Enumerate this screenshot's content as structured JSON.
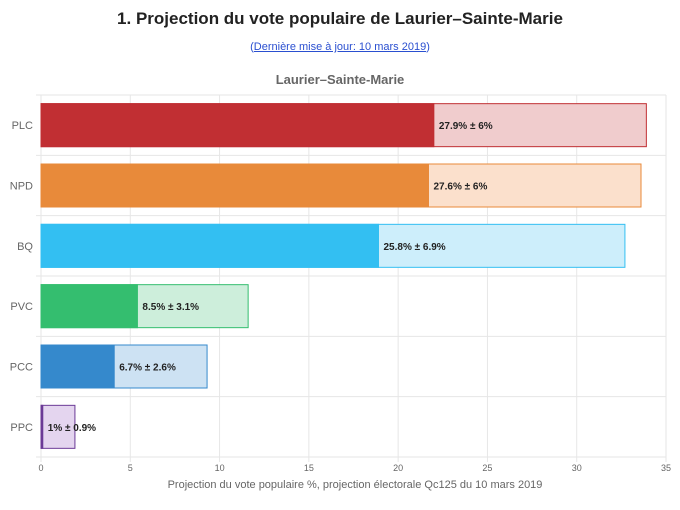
{
  "page": {
    "title": "1. Projection du vote populaire de Laurier–Sainte-Marie",
    "update_open": "(",
    "update_link": "Dernière mise à jour: 10 mars 2019",
    "update_close": ")"
  },
  "chart_data": {
    "type": "bar",
    "orientation": "horizontal",
    "title": "Laurier–Sainte-Marie",
    "xlabel": "Projection du vote populaire %, projection électorale Qc125 du 10 mars 2019",
    "ylabel": "",
    "xlim": [
      0,
      35
    ],
    "xticks": [
      0,
      5,
      10,
      15,
      20,
      25,
      30,
      35
    ],
    "grid": true,
    "categories": [
      "PLC",
      "NPD",
      "BQ",
      "PVC",
      "PCC",
      "PPC"
    ],
    "bars": [
      {
        "party": "PLC",
        "low": 22.0,
        "high": 33.9,
        "label": "27.9% ± 6%",
        "color": "#c12f33",
        "light": "#f0cccd"
      },
      {
        "party": "NPD",
        "low": 21.7,
        "high": 33.6,
        "label": "27.6% ± 6%",
        "color": "#e88a3a",
        "light": "#fbe0cc"
      },
      {
        "party": "BQ",
        "low": 18.9,
        "high": 32.7,
        "label": "25.8% ± 6.9%",
        "color": "#33bff2",
        "light": "#cdeefb"
      },
      {
        "party": "PVC",
        "low": 5.4,
        "high": 11.6,
        "label": "8.5% ± 3.1%",
        "color": "#34be6f",
        "light": "#cdeedb"
      },
      {
        "party": "PCC",
        "low": 4.1,
        "high": 9.3,
        "label": "6.7% ± 2.6%",
        "color": "#3589cc",
        "light": "#cde2f3"
      },
      {
        "party": "PPC",
        "low": 0.1,
        "high": 1.9,
        "label": "1% ± 0.9%",
        "color": "#6b3a96",
        "light": "#e4d5ef"
      }
    ]
  }
}
